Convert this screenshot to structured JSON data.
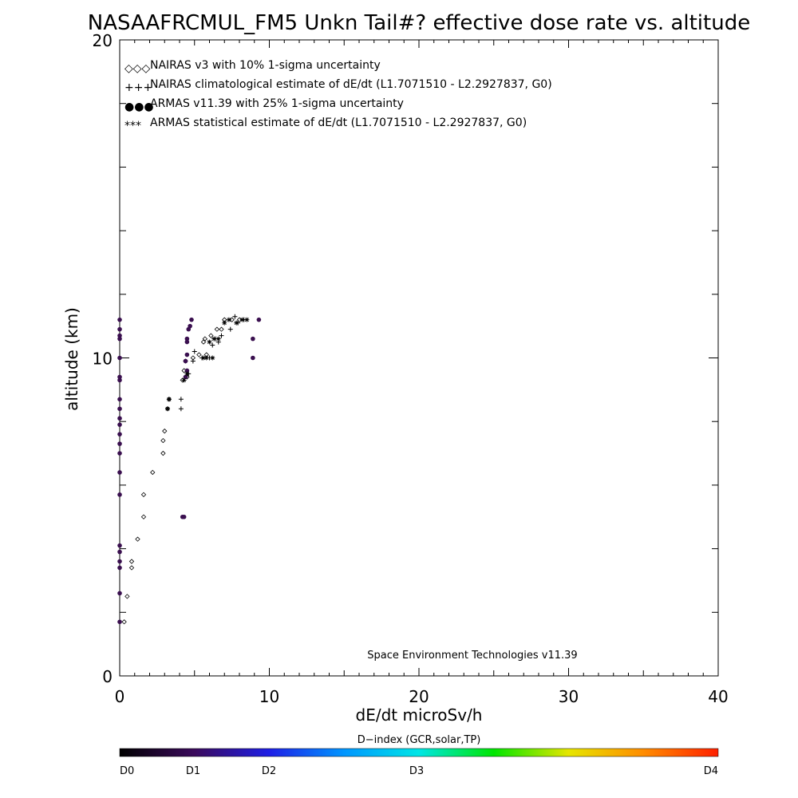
{
  "chart_data": {
    "type": "scatter",
    "title": "NASAAFRCMUL_FM5 Unkn Tail#? effective dose rate vs. altitude",
    "xlabel": "dE/dt microSv/h",
    "ylabel": "altitude (km)",
    "xlim": [
      0,
      40
    ],
    "ylim": [
      0,
      20
    ],
    "x_ticks": [
      "0",
      "10",
      "20",
      "30",
      "40"
    ],
    "y_ticks": [
      "0",
      "10",
      "20"
    ],
    "grid": false,
    "legend_placement": "top-left",
    "credit": "Space Environment Technologies v11.39",
    "series": [
      {
        "name": "NAIRAS v3 with 10% 1-sigma uncertainty",
        "legend_symbols": "◇◇◇",
        "marker": "diamond",
        "color": "#000000",
        "points": [
          [
            0.3,
            1.7
          ],
          [
            0.5,
            2.5
          ],
          [
            0.8,
            3.4
          ],
          [
            0.8,
            3.6
          ],
          [
            1.2,
            4.3
          ],
          [
            1.6,
            5.0
          ],
          [
            1.6,
            5.7
          ],
          [
            2.2,
            6.4
          ],
          [
            2.9,
            7.0
          ],
          [
            2.9,
            7.4
          ],
          [
            3.0,
            7.7
          ],
          [
            3.2,
            8.4
          ],
          [
            3.3,
            8.7
          ],
          [
            4.2,
            9.3
          ],
          [
            4.3,
            9.6
          ],
          [
            4.4,
            9.9
          ],
          [
            4.9,
            10.0
          ],
          [
            5.3,
            10.1
          ],
          [
            5.6,
            10.5
          ],
          [
            5.7,
            10.6
          ],
          [
            6.1,
            10.7
          ],
          [
            6.5,
            10.9
          ],
          [
            7.0,
            11.2
          ],
          [
            7.5,
            11.2
          ],
          [
            8.0,
            11.2
          ],
          [
            4.5,
            9.4
          ],
          [
            5.8,
            10.1
          ],
          [
            6.8,
            10.9
          ]
        ]
      },
      {
        "name": "NAIRAS climatological estimate of dE/dt (L1.7071510 - L2.2927837, G0)",
        "legend_symbols": "+++",
        "marker": "plus",
        "color": "#000000",
        "points": [
          [
            4.1,
            8.4
          ],
          [
            4.1,
            8.7
          ],
          [
            4.6,
            9.5
          ],
          [
            4.9,
            9.9
          ],
          [
            5.5,
            10.0
          ],
          [
            6.0,
            10.0
          ],
          [
            6.2,
            10.4
          ],
          [
            6.6,
            10.5
          ],
          [
            6.8,
            10.7
          ],
          [
            7.4,
            10.9
          ],
          [
            7.9,
            11.1
          ],
          [
            8.3,
            11.2
          ],
          [
            5.0,
            10.2
          ],
          [
            6.4,
            10.6
          ],
          [
            7.7,
            11.3
          ]
        ]
      },
      {
        "name": "ARMAS v11.39 with 25% 1-sigma uncertainty",
        "legend_symbols": "●●●",
        "marker": "dot",
        "color": "#3a0f4f",
        "points": [
          [
            0.0,
            1.7
          ],
          [
            0.0,
            2.6
          ],
          [
            0.0,
            3.4
          ],
          [
            0.0,
            3.6
          ],
          [
            0.0,
            3.9
          ],
          [
            0.0,
            4.1
          ],
          [
            0.0,
            5.7
          ],
          [
            0.0,
            6.4
          ],
          [
            0.0,
            7.0
          ],
          [
            0.0,
            7.3
          ],
          [
            0.0,
            7.6
          ],
          [
            0.0,
            7.9
          ],
          [
            0.0,
            8.1
          ],
          [
            0.0,
            8.4
          ],
          [
            0.0,
            8.7
          ],
          [
            0.0,
            9.3
          ],
          [
            0.0,
            9.4
          ],
          [
            0.0,
            10.0
          ],
          [
            0.0,
            10.6
          ],
          [
            0.0,
            10.7
          ],
          [
            0.0,
            10.9
          ],
          [
            0.0,
            11.2
          ],
          [
            4.2,
            5.0
          ],
          [
            4.3,
            5.0
          ],
          [
            4.4,
            9.4
          ],
          [
            4.5,
            9.6
          ],
          [
            4.4,
            9.9
          ],
          [
            4.5,
            10.1
          ],
          [
            4.5,
            10.5
          ],
          [
            4.5,
            10.6
          ],
          [
            4.6,
            10.9
          ],
          [
            4.7,
            11.0
          ],
          [
            4.8,
            11.2
          ],
          [
            8.9,
            10.0
          ],
          [
            8.9,
            10.6
          ],
          [
            9.3,
            11.2
          ]
        ]
      },
      {
        "name": "ARMAS statistical estimate of dE/dt (L1.7071510 - L2.2927837, G0)",
        "legend_symbols": "***",
        "marker": "asterisk",
        "color": "#000000",
        "points": [
          [
            3.2,
            8.4
          ],
          [
            3.3,
            8.7
          ],
          [
            4.3,
            9.3
          ],
          [
            4.5,
            9.5
          ],
          [
            5.6,
            10.0
          ],
          [
            5.8,
            10.0
          ],
          [
            6.2,
            10.0
          ],
          [
            6.0,
            10.5
          ],
          [
            6.3,
            10.6
          ],
          [
            6.6,
            10.6
          ],
          [
            7.0,
            11.1
          ],
          [
            7.3,
            11.2
          ],
          [
            7.8,
            11.1
          ],
          [
            8.2,
            11.2
          ],
          [
            8.5,
            11.2
          ]
        ]
      }
    ]
  },
  "colorbar": {
    "title": "D−index (GCR,solar,TP)",
    "labels": [
      "D0",
      "D1",
      "D2",
      "D3",
      "D4"
    ],
    "stops": [
      "#000000",
      "#3b0a5c",
      "#1e1ee6",
      "#0096ff",
      "#00e6e6",
      "#00e600",
      "#e6e600",
      "#ff8c00",
      "#ff2000"
    ]
  }
}
